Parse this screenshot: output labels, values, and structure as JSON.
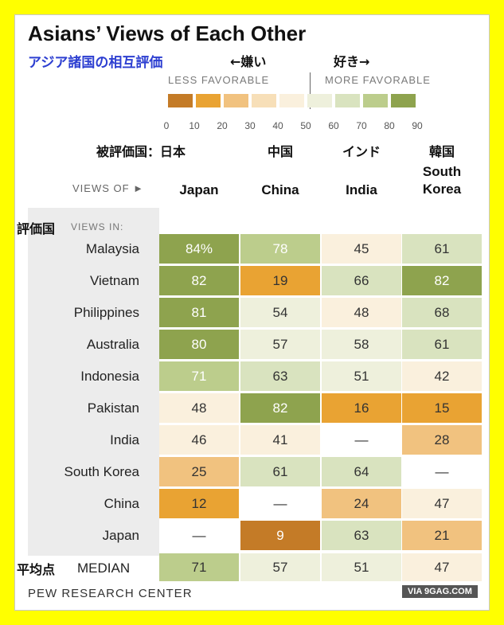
{
  "title": "Asians’ Views of Each Other",
  "subtitle_jp": "アジア諸国の相互評価",
  "annotations": {
    "left": "←嫌い",
    "right": "好き→"
  },
  "legend": {
    "less_label": "LESS FAVORABLE",
    "more_label": "MORE FAVORABLE",
    "ticks": [
      "0",
      "10",
      "20",
      "30",
      "40",
      "50",
      "60",
      "70",
      "80",
      "90"
    ],
    "colors": [
      "#c47b27",
      "#e9a333",
      "#f1c27f",
      "#f7dfb8",
      "#faf0dd",
      "#eef0dc",
      "#d9e3bf",
      "#bccd8c",
      "#8ea34e"
    ]
  },
  "header_jp_label": "被評価国：日本",
  "views_of_label": "VIEWS OF ►",
  "views_in_label": "VIEWS IN:",
  "row_axis_jp": "評価国",
  "median_jp": "平均点",
  "source": "PEW RESEARCH CENTER",
  "watermark": "VIA 9GAG.COM",
  "chart_data": {
    "type": "heatmap",
    "title": "Asians’ Views of Each Other",
    "columns": [
      "Japan",
      "China",
      "India",
      "South Korea"
    ],
    "columns_display": [
      "Japan",
      "China",
      "India",
      "South\nKorea"
    ],
    "columns_jp": [
      "",
      "中国",
      "インド",
      "韓国"
    ],
    "rows": [
      "Malaysia",
      "Vietnam",
      "Philippines",
      "Australia",
      "Indonesia",
      "Pakistan",
      "India",
      "South Korea",
      "China",
      "Japan"
    ],
    "values": [
      [
        84,
        78,
        45,
        61
      ],
      [
        82,
        19,
        66,
        82
      ],
      [
        81,
        54,
        48,
        68
      ],
      [
        80,
        57,
        58,
        61
      ],
      [
        71,
        63,
        51,
        42
      ],
      [
        48,
        82,
        16,
        15
      ],
      [
        46,
        41,
        null,
        28
      ],
      [
        25,
        61,
        64,
        null
      ],
      [
        12,
        null,
        24,
        47
      ],
      [
        null,
        9,
        63,
        21
      ]
    ],
    "first_cell_suffix": "%",
    "missing_label": "—",
    "median": {
      "label": "MEDIAN",
      "values": [
        71,
        57,
        51,
        47
      ]
    },
    "scale": {
      "min": 0,
      "max": 90,
      "midpoint": 50
    }
  }
}
